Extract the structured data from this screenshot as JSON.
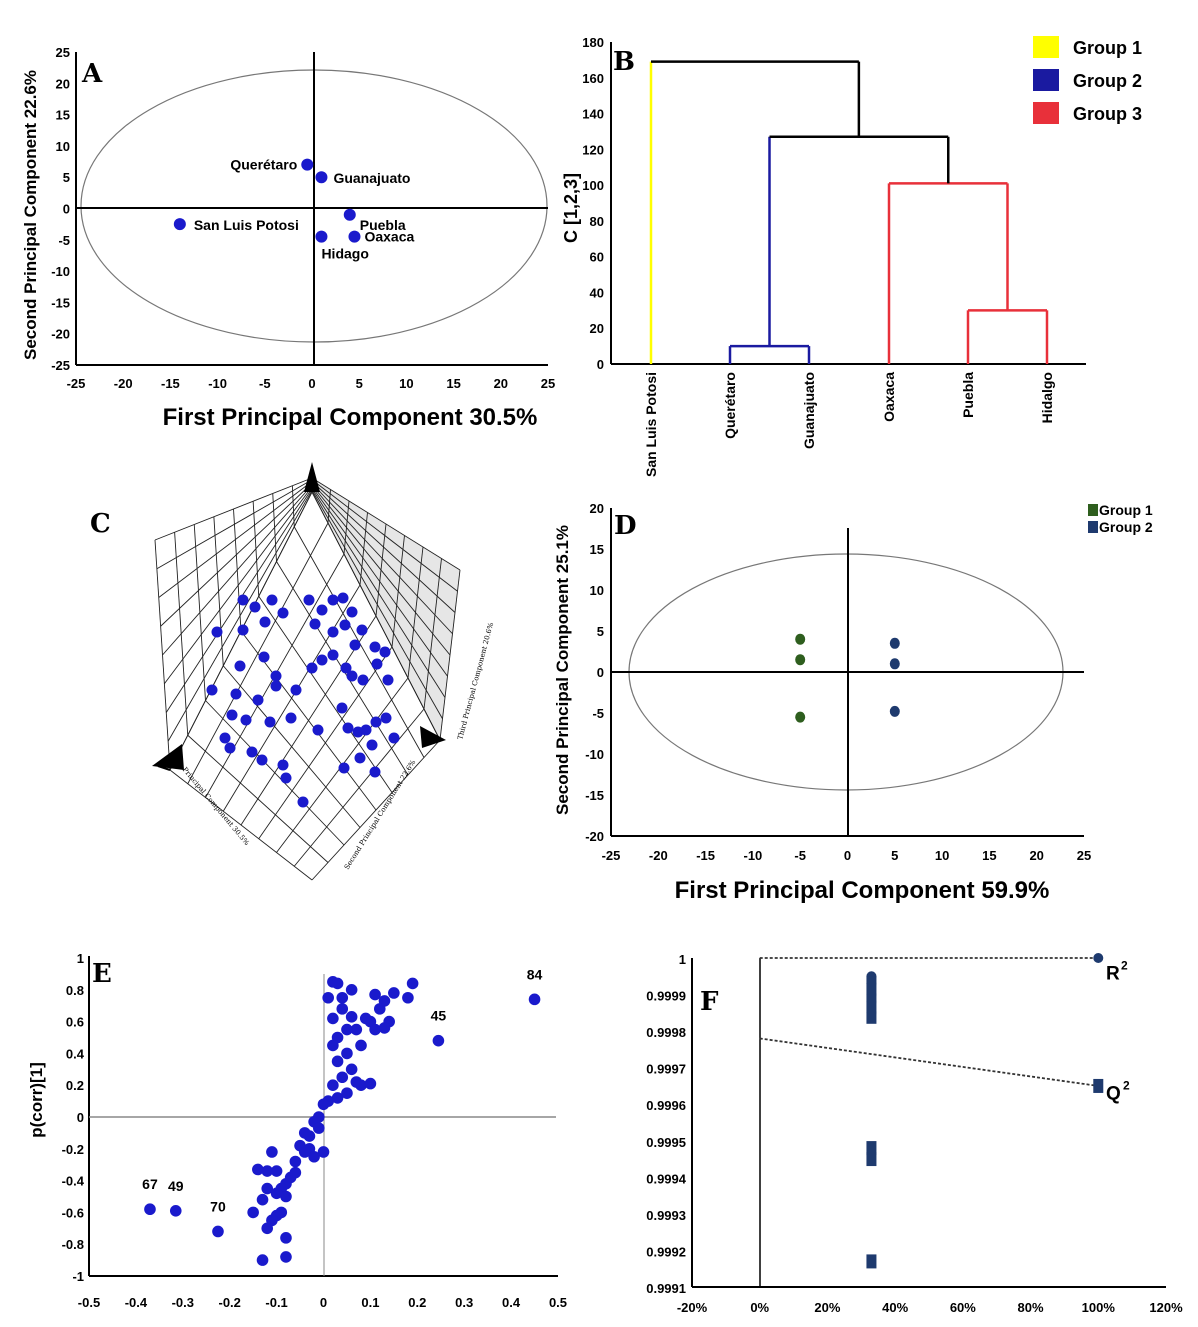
{
  "chart_data": [
    {
      "panel": "A",
      "type": "scatter",
      "xlabel": "First Principal Component 30.5%",
      "ylabel": "Second Principal Component 22.6%",
      "xlim": [
        -25,
        25
      ],
      "ylim": [
        -25,
        25
      ],
      "xticks": [
        "-25",
        "-20",
        "-15",
        "-10",
        "-5",
        "0",
        "5",
        "10",
        "15",
        "20",
        "25"
      ],
      "yticks": [
        "25",
        "20",
        "15",
        "10",
        "5",
        "0",
        "-5",
        "-10",
        "-15",
        "-20",
        "-25"
      ],
      "points": [
        {
          "label": "Querétaro",
          "x": -0.5,
          "y": 7
        },
        {
          "label": "Guanajuato",
          "x": 1,
          "y": 5
        },
        {
          "label": "San Luis Potosi",
          "x": -14,
          "y": -2.5
        },
        {
          "label": "Puebla",
          "x": 4,
          "y": -1
        },
        {
          "label": "Oaxaca",
          "x": 4.5,
          "y": -4.5
        },
        {
          "label": "Hidago",
          "x": 1,
          "y": -4.5
        }
      ],
      "color": "#1a1acc"
    },
    {
      "panel": "B",
      "type": "dendrogram",
      "ylabel": "C [1,2,3]",
      "ylim": [
        0,
        180
      ],
      "yticks": [
        "0",
        "20",
        "40",
        "60",
        "80",
        "100",
        "120",
        "140",
        "160",
        "180"
      ],
      "leaves": [
        "San Luis Potosi",
        "Querétaro",
        "Guanajuato",
        "Oaxaca",
        "Puebla",
        "Hidalgo"
      ],
      "merges": [
        {
          "a": "Querétaro",
          "b": "Guanajuato",
          "height": 10,
          "color": "#1a1aa0"
        },
        {
          "a": "Puebla",
          "b": "Hidalgo",
          "height": 30,
          "color": "#e8303a"
        },
        {
          "a": "Oaxaca",
          "b": "Puebla+Hidalgo",
          "height": 101,
          "color": "#e8303a"
        },
        {
          "a": "Group 2",
          "b": "Group 3",
          "height": 127,
          "color": "#000000"
        },
        {
          "a": "San Luis Potosi",
          "b": "rest",
          "height": 169,
          "color": "#000000"
        }
      ],
      "legend": [
        {
          "name": "Group 1",
          "color": "#ffff00"
        },
        {
          "name": "Group 2",
          "color": "#1a1aa0"
        },
        {
          "name": "Group 3",
          "color": "#e8303a"
        }
      ]
    },
    {
      "panel": "C",
      "type": "scatter3d",
      "xlabel": "First Principal Component 30.5%",
      "ylabel": "Second Principal Component 22.6%",
      "zlabel": "Third Principal Component 20.6%",
      "color": "#1a1acc"
    },
    {
      "panel": "D",
      "type": "scatter",
      "xlabel": "First Principal Component 59.9%",
      "ylabel": "Second Principal Component 25.1%",
      "xlim": [
        -25,
        25
      ],
      "ylim": [
        -20,
        20
      ],
      "xticks": [
        "-25",
        "-20",
        "-15",
        "-10",
        "-5",
        "0",
        "5",
        "10",
        "15",
        "20",
        "25"
      ],
      "yticks": [
        "20",
        "15",
        "10",
        "5",
        "0",
        "-5",
        "-10",
        "-15",
        "-20"
      ],
      "series": [
        {
          "name": "Group 1",
          "color": "#2e5e1e",
          "points": [
            {
              "x": -5,
              "y": 4
            },
            {
              "x": -5,
              "y": 1.5
            },
            {
              "x": -5,
              "y": -5.5
            }
          ]
        },
        {
          "name": "Group 2",
          "color": "#1e3a6e",
          "points": [
            {
              "x": 5,
              "y": 3.5
            },
            {
              "x": 5,
              "y": 1
            },
            {
              "x": 5,
              "y": -4.8
            }
          ]
        }
      ]
    },
    {
      "panel": "E",
      "type": "scatter",
      "ylabel": "p(corr)[1]",
      "xlim": [
        -0.5,
        0.5
      ],
      "ylim": [
        -1,
        1
      ],
      "xticks": [
        "-0.5",
        "-0.4",
        "-0.3",
        "-0.2",
        "-0.1",
        "0",
        "0.1",
        "0.2",
        "0.3",
        "0.4",
        "0.5"
      ],
      "yticks": [
        "1",
        "0.8",
        "0.6",
        "0.4",
        "0.2",
        "0",
        "-0.2",
        "-0.4",
        "-0.6",
        "-0.8",
        "-1"
      ],
      "annotations": [
        {
          "label": "84",
          "x": 0.45,
          "y": 0.74
        },
        {
          "label": "45",
          "x": 0.245,
          "y": 0.48
        },
        {
          "label": "67",
          "x": -0.37,
          "y": -0.58
        },
        {
          "label": "49",
          "x": -0.315,
          "y": -0.59
        },
        {
          "label": "70",
          "x": -0.225,
          "y": -0.72
        }
      ],
      "points": [
        [
          0.02,
          0.85
        ],
        [
          0.03,
          0.84
        ],
        [
          0.01,
          0.75
        ],
        [
          0.04,
          0.68
        ],
        [
          0.06,
          0.63
        ],
        [
          0.02,
          0.62
        ],
        [
          0.05,
          0.55
        ],
        [
          0.03,
          0.5
        ],
        [
          0.07,
          0.55
        ],
        [
          0.08,
          0.45
        ],
        [
          0.02,
          0.45
        ],
        [
          0.05,
          0.4
        ],
        [
          0.03,
          0.35
        ],
        [
          0.06,
          0.3
        ],
        [
          0.04,
          0.25
        ],
        [
          0.02,
          0.2
        ],
        [
          0.08,
          0.2
        ],
        [
          0.1,
          0.21
        ],
        [
          0.07,
          0.22
        ],
        [
          0.05,
          0.15
        ],
        [
          0.03,
          0.12
        ],
        [
          0.01,
          0.1
        ],
        [
          0.0,
          0.08
        ],
        [
          0.11,
          0.77
        ],
        [
          0.13,
          0.73
        ],
        [
          0.12,
          0.68
        ],
        [
          0.14,
          0.6
        ],
        [
          0.15,
          0.78
        ],
        [
          0.1,
          0.6
        ],
        [
          0.09,
          0.62
        ],
        [
          0.11,
          0.55
        ],
        [
          0.13,
          0.56
        ],
        [
          0.19,
          0.84
        ],
        [
          0.18,
          0.75
        ],
        [
          0.04,
          0.75
        ],
        [
          0.06,
          0.8
        ],
        [
          -0.01,
          0.0
        ],
        [
          -0.02,
          -0.03
        ],
        [
          -0.01,
          -0.07
        ],
        [
          -0.03,
          -0.12
        ],
        [
          -0.04,
          -0.1
        ],
        [
          -0.05,
          -0.18
        ],
        [
          -0.03,
          -0.2
        ],
        [
          -0.04,
          -0.22
        ],
        [
          0.0,
          -0.22
        ],
        [
          -0.02,
          -0.25
        ],
        [
          -0.06,
          -0.28
        ],
        [
          -0.07,
          -0.38
        ],
        [
          -0.08,
          -0.42
        ],
        [
          -0.09,
          -0.45
        ],
        [
          -0.06,
          -0.35
        ],
        [
          -0.1,
          -0.34
        ],
        [
          -0.12,
          -0.34
        ],
        [
          -0.14,
          -0.33
        ],
        [
          -0.11,
          -0.22
        ],
        [
          -0.08,
          -0.5
        ],
        [
          -0.1,
          -0.48
        ],
        [
          -0.12,
          -0.45
        ],
        [
          -0.13,
          -0.52
        ],
        [
          -0.1,
          -0.62
        ],
        [
          -0.11,
          -0.65
        ],
        [
          -0.12,
          -0.7
        ],
        [
          -0.09,
          -0.6
        ],
        [
          -0.15,
          -0.6
        ],
        [
          -0.08,
          -0.76
        ],
        [
          -0.08,
          -0.88
        ],
        [
          -0.13,
          -0.9
        ],
        [
          -0.37,
          -0.58
        ],
        [
          -0.315,
          -0.59
        ],
        [
          -0.225,
          -0.72
        ],
        [
          0.245,
          0.48
        ],
        [
          0.45,
          0.74
        ]
      ],
      "color": "#1a1acc"
    },
    {
      "panel": "F",
      "type": "scatter",
      "xlim": [
        -0.2,
        1.2
      ],
      "ylim": [
        0.9991,
        1
      ],
      "xticks": [
        "-20%",
        "0%",
        "20%",
        "40%",
        "60%",
        "80%",
        "100%",
        "120%"
      ],
      "yticks": [
        "1",
        "0.9999",
        "0.9998",
        "0.9997",
        "0.9996",
        "0.9995",
        "0.9994",
        "0.9993",
        "0.9992",
        "0.9991"
      ],
      "series": [
        {
          "name": "R2",
          "marker": "circle",
          "points": [
            {
              "x": 1,
              "y": 1
            },
            {
              "x": 0.33,
              "y": 0.99995
            },
            {
              "x": 0.33,
              "y": 0.99993
            },
            {
              "x": 0.33,
              "y": 0.9999
            },
            {
              "x": 0.33,
              "y": 0.99988
            },
            {
              "x": 0.33,
              "y": 0.99985
            }
          ]
        },
        {
          "name": "Q2",
          "marker": "square",
          "points": [
            {
              "x": 1,
              "y": 0.99965
            },
            {
              "x": 0.33,
              "y": 0.99948
            },
            {
              "x": 0.33,
              "y": 0.99945
            },
            {
              "x": 0.33,
              "y": 0.99917
            }
          ]
        }
      ],
      "lines": [
        {
          "name": "R2 line",
          "from": [
            0,
            1
          ],
          "to": [
            1,
            1
          ]
        },
        {
          "name": "Q2 line",
          "from": [
            0,
            0.99978
          ],
          "to": [
            1,
            0.99965
          ]
        }
      ],
      "labels": {
        "r": "R",
        "q": "Q",
        "sup": "2"
      },
      "color": "#1e3a6e"
    }
  ],
  "panel_letters": {
    "a": "A",
    "b": "B",
    "c": "C",
    "d": "D",
    "e": "E",
    "f": "F"
  }
}
